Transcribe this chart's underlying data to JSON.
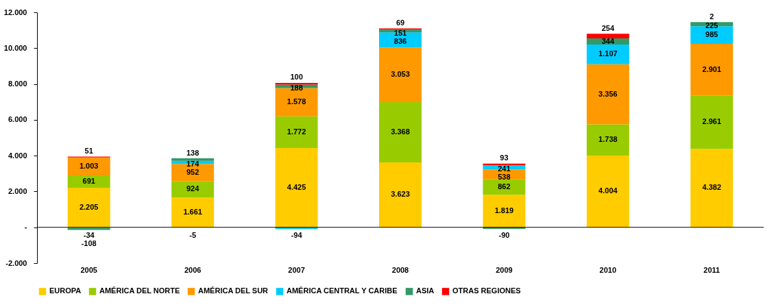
{
  "chart_data": {
    "type": "bar",
    "stacked": true,
    "categories": [
      "2005",
      "2006",
      "2007",
      "2008",
      "2009",
      "2010",
      "2011"
    ],
    "series": [
      {
        "name": "EUROPA",
        "color": "#ffcc00",
        "values": [
          2205,
          1661,
          4425,
          3623,
          1819,
          4004,
          4382
        ],
        "value_labels": [
          "2.205",
          "1.661",
          "4.425",
          "3.623",
          "1.819",
          "4.004",
          "4.382"
        ]
      },
      {
        "name": "AMÉRICA DEL NORTE",
        "color": "#99cc00",
        "values": [
          691,
          924,
          1772,
          3368,
          862,
          1738,
          2961
        ],
        "value_labels": [
          "691",
          "924",
          "1.772",
          "3.368",
          "862",
          "1.738",
          "2.961"
        ]
      },
      {
        "name": "AMÉRICA DEL SUR",
        "color": "#ff9900",
        "values": [
          1003,
          952,
          1578,
          3053,
          538,
          3356,
          2901
        ],
        "value_labels": [
          "1.003",
          "952",
          "1.578",
          "3.053",
          "538",
          "3.356",
          "2.901"
        ]
      },
      {
        "name": "AMÉRICA CENTRAL Y CARIBE",
        "color": "#00ccff",
        "values": [
          -34,
          174,
          -94,
          836,
          241,
          1107,
          985
        ],
        "value_labels": [
          "-34",
          "174",
          "-94",
          "836",
          "241",
          "1.107",
          "985"
        ]
      },
      {
        "name": "ASIA",
        "color": "#339966",
        "values": [
          -108,
          138,
          188,
          151,
          -90,
          344,
          225
        ],
        "value_labels": [
          "-108",
          "138",
          "188",
          "151",
          "-90",
          "344",
          "225"
        ]
      },
      {
        "name": "OTRAS REGIONES",
        "color": "#ff0000",
        "values": [
          51,
          -5,
          100,
          69,
          93,
          254,
          2
        ],
        "value_labels": [
          "51",
          "-5",
          "100",
          "69",
          "93",
          "254",
          "2"
        ]
      }
    ],
    "ylim": [
      -2000,
      12000
    ],
    "yticks": [
      {
        "value": -2000,
        "label": "-2.000"
      },
      {
        "value": 0,
        "label": "-"
      },
      {
        "value": 2000,
        "label": "2.000"
      },
      {
        "value": 4000,
        "label": "4.000"
      },
      {
        "value": 6000,
        "label": "6.000"
      },
      {
        "value": 8000,
        "label": "8.000"
      },
      {
        "value": 10000,
        "label": "10.000"
      },
      {
        "value": 12000,
        "label": "12.000"
      }
    ],
    "legend": "bottom"
  }
}
